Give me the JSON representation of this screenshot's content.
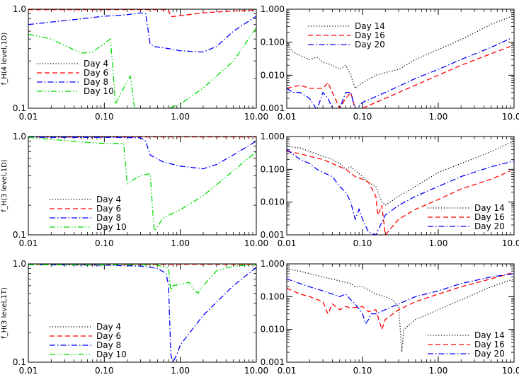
{
  "chart_data": [
    {
      "type": "line",
      "panel": "row1-left",
      "xscale": "log",
      "yscale": "log",
      "xlim": [
        0.01,
        10
      ],
      "ylim": [
        0.1,
        1.0
      ],
      "xticks": [
        "0.01",
        "0.10",
        "1.00",
        "10.00"
      ],
      "yticks": [
        "1.0",
        "0.1"
      ],
      "ylabel": "f_H(4 level,1D)",
      "legend": "left-middle",
      "series": [
        {
          "name": "Day 4",
          "color": "#000000",
          "dash": "dot",
          "x": [
            0.01,
            10
          ],
          "y": [
            1.0,
            1.0
          ]
        },
        {
          "name": "Day 6",
          "color": "#ff0000",
          "dash": "dash",
          "x": [
            0.01,
            0.1,
            0.5,
            0.7,
            0.75,
            1,
            2,
            5,
            10
          ],
          "y": [
            0.99,
            0.99,
            0.99,
            0.99,
            0.84,
            0.86,
            0.92,
            0.96,
            0.98
          ]
        },
        {
          "name": "Day 8",
          "color": "#0000ff",
          "dash": "dashdot",
          "x": [
            0.01,
            0.05,
            0.1,
            0.2,
            0.3,
            0.35,
            0.4,
            0.45,
            0.7,
            1,
            2,
            3,
            5,
            10
          ],
          "y": [
            0.7,
            0.8,
            0.85,
            0.88,
            0.92,
            0.9,
            0.45,
            0.42,
            0.4,
            0.38,
            0.37,
            0.42,
            0.6,
            0.85
          ]
        },
        {
          "name": "Day 10",
          "color": "#00dd00",
          "dash": "dashdotdot",
          "x": [
            0.01,
            0.02,
            0.03,
            0.05,
            0.07,
            0.1,
            0.12,
            0.13,
            0.14,
            0.18,
            0.22,
            0.25,
            0.7,
            1,
            2,
            5,
            10
          ],
          "y": [
            0.56,
            0.5,
            0.43,
            0.36,
            0.37,
            0.45,
            0.5,
            0.25,
            0.11,
            0.16,
            0.21,
            0.1,
            0.1,
            0.11,
            0.16,
            0.3,
            0.65
          ]
        }
      ]
    },
    {
      "type": "line",
      "panel": "row1-right",
      "xscale": "log",
      "yscale": "log",
      "xlim": [
        0.01,
        10
      ],
      "ylim": [
        0.001,
        1.0
      ],
      "xticks": [
        "0.01",
        "0.10",
        "1.00",
        "10.00"
      ],
      "yticks": [
        "1.000",
        "0.100",
        "0.010",
        "0.001"
      ],
      "legend": "top-left",
      "series": [
        {
          "name": "Day 14",
          "color": "#000000",
          "dash": "dot",
          "x": [
            0.01,
            0.012,
            0.015,
            0.02,
            0.025,
            0.03,
            0.04,
            0.05,
            0.06,
            0.07,
            0.08,
            0.09,
            0.1,
            0.15,
            0.2,
            0.3,
            0.5,
            1,
            2,
            5,
            10
          ],
          "y": [
            0.1,
            0.05,
            0.04,
            0.03,
            0.035,
            0.025,
            0.02,
            0.015,
            0.02,
            0.01,
            0.004,
            0.005,
            0.006,
            0.01,
            0.012,
            0.015,
            0.03,
            0.06,
            0.12,
            0.35,
            0.65
          ]
        },
        {
          "name": "Day 16",
          "color": "#ff0000",
          "dash": "dash",
          "x": [
            0.01,
            0.015,
            0.02,
            0.03,
            0.035,
            0.04,
            0.05,
            0.06,
            0.07,
            0.08,
            0.09,
            0.1,
            0.2,
            0.5,
            1,
            2,
            5,
            9
          ],
          "y": [
            0.004,
            0.005,
            0.004,
            0.004,
            0.006,
            0.003,
            0.001,
            0.002,
            0.003,
            0.001,
            0.0009,
            0.001,
            0.002,
            0.005,
            0.01,
            0.02,
            0.045,
            0.075
          ]
        },
        {
          "name": "Day 20",
          "color": "#0000ff",
          "dash": "dashdot",
          "x": [
            0.01,
            0.012,
            0.015,
            0.02,
            0.025,
            0.03,
            0.035,
            0.04,
            0.05,
            0.06,
            0.07,
            0.08,
            0.1,
            0.2,
            0.5,
            1,
            2,
            5,
            9
          ],
          "y": [
            0.004,
            0.003,
            0.003,
            0.002,
            0.0009,
            0.003,
            0.002,
            0.001,
            0.001,
            0.003,
            0.003,
            0.0009,
            0.0015,
            0.003,
            0.008,
            0.015,
            0.03,
            0.07,
            0.13
          ]
        }
      ]
    },
    {
      "type": "line",
      "panel": "row2-left",
      "xscale": "log",
      "yscale": "log",
      "xlim": [
        0.01,
        10
      ],
      "ylim": [
        0.1,
        1.0
      ],
      "xticks": [
        "0.01",
        "0.10",
        "1.00",
        "10.00"
      ],
      "yticks": [
        "1.0",
        "0.1"
      ],
      "ylabel": "f_H(3 level,1D)",
      "legend": "bottom-left",
      "series": [
        {
          "name": "Day 4",
          "color": "#000000",
          "dash": "dot",
          "x": [
            0.01,
            10
          ],
          "y": [
            1.0,
            1.0
          ]
        },
        {
          "name": "Day 6",
          "color": "#ff0000",
          "dash": "dash",
          "x": [
            0.01,
            10
          ],
          "y": [
            0.99,
            0.99
          ]
        },
        {
          "name": "Day 8",
          "color": "#0000ff",
          "dash": "dashdot",
          "x": [
            0.01,
            0.1,
            0.3,
            0.35,
            0.4,
            0.45,
            0.6,
            1,
            2,
            3,
            5,
            10
          ],
          "y": [
            0.98,
            0.98,
            0.97,
            0.9,
            0.65,
            0.62,
            0.55,
            0.5,
            0.47,
            0.52,
            0.65,
            0.9
          ]
        },
        {
          "name": "Day 10",
          "color": "#00dd00",
          "dash": "dashdotdot",
          "x": [
            0.01,
            0.05,
            0.1,
            0.18,
            0.2,
            0.25,
            0.3,
            0.4,
            0.45,
            0.46,
            0.6,
            1,
            2,
            5,
            10
          ],
          "y": [
            0.98,
            0.88,
            0.85,
            0.85,
            0.33,
            0.37,
            0.4,
            0.42,
            0.12,
            0.11,
            0.15,
            0.18,
            0.25,
            0.45,
            0.7
          ]
        }
      ]
    },
    {
      "type": "line",
      "panel": "row2-right",
      "xscale": "log",
      "yscale": "log",
      "xlim": [
        0.01,
        10
      ],
      "ylim": [
        0.001,
        1.0
      ],
      "xticks": [
        "0.01",
        "0.10",
        "1.00",
        "10.00"
      ],
      "yticks": [
        "1.000",
        "0.100",
        "0.010",
        "0.001"
      ],
      "legend": "bottom-right",
      "series": [
        {
          "name": "Day 14",
          "color": "#000000",
          "dash": "dot",
          "x": [
            0.01,
            0.015,
            0.02,
            0.03,
            0.04,
            0.05,
            0.06,
            0.07,
            0.1,
            0.12,
            0.15,
            0.18,
            0.2,
            0.3,
            0.5,
            1,
            2,
            5,
            10
          ],
          "y": [
            0.5,
            0.45,
            0.35,
            0.25,
            0.2,
            0.15,
            0.1,
            0.12,
            0.06,
            0.04,
            0.03,
            0.01,
            0.008,
            0.015,
            0.03,
            0.08,
            0.15,
            0.35,
            0.75
          ]
        },
        {
          "name": "Day 16",
          "color": "#ff0000",
          "dash": "dash",
          "x": [
            0.01,
            0.015,
            0.02,
            0.03,
            0.04,
            0.05,
            0.06,
            0.08,
            0.1,
            0.12,
            0.15,
            0.16,
            0.18,
            0.2,
            0.3,
            0.5,
            1,
            2,
            5,
            9
          ],
          "y": [
            0.35,
            0.3,
            0.25,
            0.2,
            0.15,
            0.12,
            0.1,
            0.06,
            0.05,
            0.04,
            0.015,
            0.004,
            0.008,
            0.001,
            0.003,
            0.006,
            0.012,
            0.025,
            0.05,
            0.09
          ]
        },
        {
          "name": "Day 20",
          "color": "#0000ff",
          "dash": "dashdot",
          "x": [
            0.01,
            0.015,
            0.02,
            0.025,
            0.03,
            0.04,
            0.05,
            0.06,
            0.07,
            0.08,
            0.09,
            0.1,
            0.12,
            0.15,
            0.2,
            0.3,
            0.5,
            1,
            2,
            5,
            10
          ],
          "y": [
            0.4,
            0.2,
            0.15,
            0.1,
            0.08,
            0.06,
            0.03,
            0.02,
            0.01,
            0.003,
            0.006,
            0.003,
            0.0012,
            0.001,
            0.004,
            0.008,
            0.015,
            0.03,
            0.06,
            0.12,
            0.18
          ]
        }
      ]
    },
    {
      "type": "line",
      "panel": "row3-left",
      "xscale": "log",
      "yscale": "log",
      "xlim": [
        0.01,
        10
      ],
      "ylim": [
        0.1,
        1.0
      ],
      "xticks": [
        "0.01",
        "0.10",
        "1.00",
        "10.00"
      ],
      "yticks": [
        "1.0",
        "0.1"
      ],
      "ylabel": "f_H(3 level,1T)",
      "legend": "bottom-left",
      "series": [
        {
          "name": "Day 4",
          "color": "#000000",
          "dash": "dot",
          "x": [
            0.01,
            10
          ],
          "y": [
            1.0,
            1.0
          ]
        },
        {
          "name": "Day 6",
          "color": "#ff0000",
          "dash": "dash",
          "x": [
            0.01,
            10
          ],
          "y": [
            0.99,
            0.99
          ]
        },
        {
          "name": "Day 8",
          "color": "#0000ff",
          "dash": "dashdot",
          "x": [
            0.01,
            0.1,
            0.3,
            0.5,
            0.65,
            0.7,
            0.75,
            0.8,
            0.9,
            1,
            2,
            5,
            10
          ],
          "y": [
            0.98,
            0.97,
            0.95,
            0.9,
            0.8,
            0.6,
            0.12,
            0.1,
            0.12,
            0.15,
            0.3,
            0.6,
            0.92
          ]
        },
        {
          "name": "Day 10",
          "color": "#00dd00",
          "dash": "dashdotdot",
          "x": [
            0.01,
            0.1,
            0.5,
            0.7,
            0.75,
            0.8,
            1,
            1.3,
            1.5,
            1.7,
            2,
            3,
            5,
            10
          ],
          "y": [
            0.98,
            0.98,
            0.97,
            0.9,
            0.52,
            0.6,
            0.62,
            0.65,
            0.55,
            0.5,
            0.6,
            0.85,
            0.95,
            0.98
          ]
        }
      ]
    },
    {
      "type": "line",
      "panel": "row3-right",
      "xscale": "log",
      "yscale": "log",
      "xlim": [
        0.01,
        10
      ],
      "ylim": [
        0.001,
        1.0
      ],
      "xticks": [
        "0.01",
        "0.10",
        "1.00",
        "10.00"
      ],
      "yticks": [
        "1.000",
        "0.100",
        "0.010",
        "0.001"
      ],
      "legend": "bottom-right",
      "series": [
        {
          "name": "Day 14",
          "color": "#000000",
          "dash": "dot",
          "x": [
            0.01,
            0.015,
            0.02,
            0.03,
            0.05,
            0.07,
            0.08,
            0.1,
            0.15,
            0.2,
            0.25,
            0.3,
            0.33,
            0.35,
            0.5,
            1,
            2,
            5,
            10
          ],
          "y": [
            0.7,
            0.6,
            0.5,
            0.4,
            0.3,
            0.25,
            0.2,
            0.2,
            0.12,
            0.1,
            0.08,
            0.05,
            0.002,
            0.01,
            0.02,
            0.04,
            0.08,
            0.2,
            0.35
          ]
        },
        {
          "name": "Day 16",
          "color": "#ff0000",
          "dash": "dash",
          "x": [
            0.01,
            0.015,
            0.02,
            0.03,
            0.035,
            0.04,
            0.05,
            0.06,
            0.07,
            0.1,
            0.12,
            0.15,
            0.18,
            0.2,
            0.3,
            0.5,
            1,
            2,
            5,
            10
          ],
          "y": [
            0.18,
            0.12,
            0.1,
            0.07,
            0.03,
            0.06,
            0.04,
            0.05,
            0.045,
            0.05,
            0.035,
            0.04,
            0.01,
            0.02,
            0.04,
            0.07,
            0.12,
            0.2,
            0.35,
            0.55
          ]
        },
        {
          "name": "Day 20",
          "color": "#0000ff",
          "dash": "dashdot",
          "x": [
            0.01,
            0.015,
            0.02,
            0.03,
            0.04,
            0.05,
            0.06,
            0.07,
            0.08,
            0.1,
            0.11,
            0.12,
            0.13,
            0.15,
            0.2,
            0.3,
            0.5,
            1,
            2,
            5,
            10
          ],
          "y": [
            0.35,
            0.25,
            0.2,
            0.15,
            0.12,
            0.1,
            0.12,
            0.08,
            0.06,
            0.03,
            0.015,
            0.02,
            0.03,
            0.03,
            0.04,
            0.06,
            0.1,
            0.15,
            0.25,
            0.4,
            0.5
          ]
        }
      ]
    }
  ]
}
